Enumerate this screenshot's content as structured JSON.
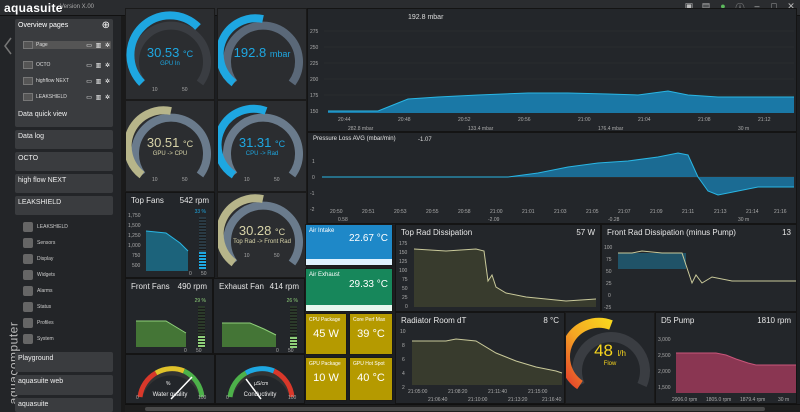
{
  "app": {
    "title": "aquasuite",
    "version": "Version X.00"
  },
  "sidebar": {
    "overview_label": "Overview pages",
    "overview_items": [
      {
        "label": "Page"
      },
      {
        "label": "OCTO"
      },
      {
        "label": "highflow NEXT"
      },
      {
        "label": "LEAKSHIELD"
      }
    ],
    "buttons": [
      {
        "label": "Data quick view"
      },
      {
        "label": "Data log"
      },
      {
        "label": "OCTO"
      },
      {
        "label": "high flow NEXT"
      },
      {
        "label": "LEAKSHIELD"
      }
    ],
    "leakshield_items": [
      {
        "label": "LEAKSHIELD"
      },
      {
        "label": "Sensors"
      },
      {
        "label": "Display"
      },
      {
        "label": "Widgets"
      },
      {
        "label": "Alarms"
      },
      {
        "label": "Status"
      },
      {
        "label": "Profiles"
      },
      {
        "label": "System"
      }
    ],
    "bottom_buttons": [
      {
        "label": "Playground"
      },
      {
        "label": "aquasuite web"
      },
      {
        "label": "aquasuite"
      }
    ],
    "vertical_brand": "aquacomputer"
  },
  "gauges": {
    "gpu_in": {
      "value": "30.53",
      "unit": "°C",
      "label": "GPU In",
      "min": "10",
      "max": "50"
    },
    "pressure": {
      "value": "192.8",
      "unit": "mbar",
      "min": "",
      "max": ""
    },
    "gpu_cpu": {
      "value": "30.51",
      "unit": "°C",
      "label": "GPU -> CPU",
      "min": "10",
      "max": "50"
    },
    "cpu_rad": {
      "value": "31.31",
      "unit": "°C",
      "label": "CPU -> Rad",
      "min": "10",
      "max": "50"
    },
    "toprad_frontrad": {
      "value": "30.28",
      "unit": "°C",
      "label": "Top Rad -> Front Rad",
      "min": "10",
      "max": "50"
    }
  },
  "fans": {
    "top": {
      "title": "Top Fans",
      "rpm": "542 rpm",
      "pct": "33 %",
      "fill": 0.33,
      "yticks": [
        "1,750",
        "1,500",
        "1,250",
        "1,000",
        "750",
        "500"
      ],
      "scale_lo": "0",
      "scale_hi": "50"
    },
    "front": {
      "title": "Front Fans",
      "rpm": "490 rpm",
      "pct": "29 %",
      "fill": 0.29,
      "scale_lo": "0",
      "scale_hi": "50"
    },
    "exhaust": {
      "title": "Exhaust Fan",
      "rpm": "414 rpm",
      "pct": "26 %",
      "fill": 0.26,
      "scale_lo": "0",
      "scale_hi": "50"
    }
  },
  "quality": {
    "water": {
      "label": "Water quality",
      "unit": "%",
      "ticks": [
        "0",
        "20",
        "40",
        "60",
        "80",
        "100"
      ]
    },
    "conductivity": {
      "label": "Conductivity",
      "unit": "µS/cm",
      "ticks": [
        "0",
        "20",
        "40",
        "60",
        "80",
        "100"
      ]
    }
  },
  "pressure_chart": {
    "title": "192.8 mbar",
    "yticks": [
      "275",
      "250",
      "225",
      "200",
      "175",
      "150"
    ],
    "xticks": [
      "20:44",
      "20:48",
      "20:52",
      "20:56",
      "21:00",
      "21:04",
      "21:08",
      "21:12"
    ],
    "stats": [
      {
        "label": "282.8 mbar"
      },
      {
        "label": "133.4 mbar"
      },
      {
        "label": "176.4 mbar"
      },
      {
        "label": "30 m"
      }
    ]
  },
  "pressure_loss": {
    "title": "Pressure Loss AVG (mbar/min)",
    "value": "-1.07",
    "yticks": [
      "1",
      "0",
      "-1",
      "-2"
    ],
    "xticks": [
      "20:50",
      "20:51",
      "20:53",
      "20:55",
      "20:58",
      "21:00",
      "21:01",
      "21:03",
      "21:05",
      "21:07",
      "21:09",
      "21:11",
      "21:13",
      "21:14",
      "21:16"
    ],
    "stats": [
      {
        "label": "0.58"
      },
      {
        "label": "-2.09"
      },
      {
        "label": "-0.28"
      },
      {
        "label": "30 m"
      }
    ]
  },
  "temps": {
    "air_intake": {
      "label": "Air Intake",
      "value": "22.67 °C"
    },
    "air_exhaust": {
      "label": "Air Exhaust",
      "value": "29.33 °C"
    }
  },
  "packages": [
    {
      "label": "CPU Package",
      "value": "45 W"
    },
    {
      "label": "Core Perf Max",
      "value": "39 °C"
    },
    {
      "label": "GPU Package",
      "value": "10 W"
    },
    {
      "label": "GPU Hot Spot",
      "value": "40 °C"
    }
  ],
  "top_rad": {
    "title": "Top Rad Dissipation",
    "value": "57 W",
    "yticks": [
      "175",
      "150",
      "125",
      "100",
      "75",
      "50",
      "25",
      "0"
    ]
  },
  "front_rad": {
    "title": "Front Rad Dissipation (minus Pump)",
    "value": "13",
    "yticks": [
      "100",
      "75",
      "50",
      "25",
      "0",
      "-25"
    ]
  },
  "room_dt": {
    "title": "Radiator Room dT",
    "value": "8 °C",
    "yticks": [
      "10",
      "8",
      "6",
      "4",
      "2"
    ],
    "xticks": [
      "21:05:00",
      "21:08:20",
      "21:11:40",
      "21:15:00",
      "21:06:40",
      "21:10:00",
      "21:13:20",
      "21:16:40"
    ]
  },
  "flow": {
    "value": "48",
    "unit": "l/h",
    "label": "Flow",
    "fill": 0.48
  },
  "d5": {
    "title": "D5 Pump",
    "value": "1810 rpm",
    "yticks": [
      "3,000",
      "2,500",
      "2,000",
      "1,500"
    ],
    "stats": [
      "2906.0 rpm",
      "1805.0 rpm",
      "1879.4 rpm",
      "30 m"
    ]
  },
  "colors": {
    "accent_blue": "#1ea7e1",
    "gauge_khaki": "#b7b58a",
    "gauge_gray": "#6a7b8c",
    "green": "#8fd07a",
    "olive": "#b59a00",
    "air_intake_bg": "#1e88c8",
    "air_exhaust_bg": "#17875b",
    "pink": "#c8557a"
  }
}
